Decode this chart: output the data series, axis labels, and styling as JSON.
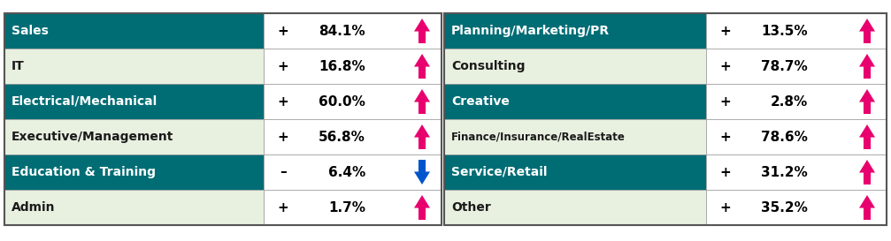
{
  "rows": [
    {
      "label": "Sales",
      "sign": "+",
      "value": "84.1%",
      "direction": "up",
      "row_bg": "teal"
    },
    {
      "label": "IT",
      "sign": "+",
      "value": "16.8%",
      "direction": "up",
      "row_bg": "light"
    },
    {
      "label": "Electrical/Mechanical",
      "sign": "+",
      "value": "60.0%",
      "direction": "up",
      "row_bg": "teal"
    },
    {
      "label": "Executive/Management",
      "sign": "+",
      "value": "56.8%",
      "direction": "up",
      "row_bg": "light"
    },
    {
      "label": "Education & Training",
      "sign": "–",
      "value": "6.4%",
      "direction": "down",
      "row_bg": "teal"
    },
    {
      "label": "Admin",
      "sign": "+",
      "value": "1.7%",
      "direction": "up",
      "row_bg": "light"
    }
  ],
  "rows_right": [
    {
      "label": "Planning/Marketing/PR",
      "sign": "+",
      "value": "13.5%",
      "direction": "up",
      "row_bg": "teal"
    },
    {
      "label": "Consulting",
      "sign": "+",
      "value": "78.7%",
      "direction": "up",
      "row_bg": "light"
    },
    {
      "label": "Creative",
      "sign": "+",
      "value": "2.8%",
      "direction": "up",
      "row_bg": "teal"
    },
    {
      "label": "Finance/Insurance/RealEstate",
      "sign": "+",
      "value": "78.6%",
      "direction": "up",
      "row_bg": "light"
    },
    {
      "label": "Service/Retail",
      "sign": "+",
      "value": "31.2%",
      "direction": "up",
      "row_bg": "teal"
    },
    {
      "label": "Other",
      "sign": "+",
      "value": "35.2%",
      "direction": "up",
      "row_bg": "light"
    }
  ],
  "teal_color": "#006D75",
  "light_color": "#E8F0E0",
  "arrow_up_color": "#E8006E",
  "arrow_down_color": "#0055CC",
  "teal_text_color": "#FFFFFF",
  "light_text_color": "#1A1A1A",
  "border_color": "#999999",
  "outer_border_color": "#666666"
}
